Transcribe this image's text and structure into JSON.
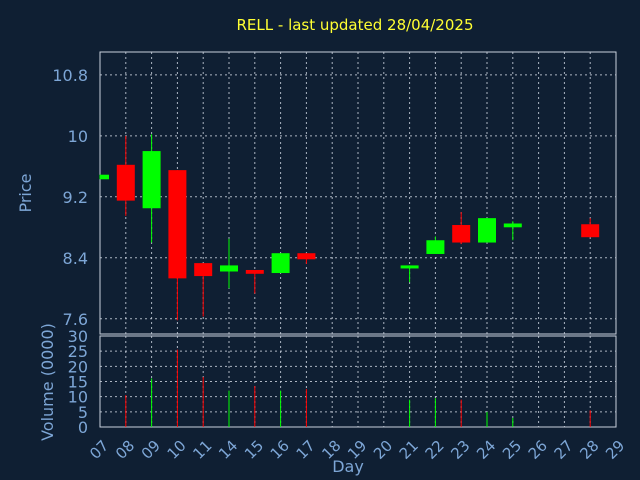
{
  "chart_data": {
    "type": "candlestick",
    "title": "RELL - last updated 28/04/2025",
    "xlabel": "Day",
    "price_ylabel": "Price",
    "volume_ylabel": "Volume (0000)",
    "x_tick_labels": [
      "07",
      "08",
      "09",
      "10",
      "11",
      "14",
      "15",
      "16",
      "17",
      "18",
      "19",
      "20",
      "21",
      "22",
      "23",
      "24",
      "25",
      "26",
      "27",
      "28",
      "29"
    ],
    "price_ticks": [
      "7.6",
      "8.4",
      "9.2",
      "10",
      "10.8"
    ],
    "price_ylim": [
      7.4,
      11.1
    ],
    "volume_ticks": [
      "0",
      "5",
      "10",
      "15",
      "20",
      "25",
      "30"
    ],
    "volume_ylim": [
      0,
      30
    ],
    "colors": {
      "up": "#00ff00",
      "down": "#ff0000",
      "background": "#0f1f33",
      "title": "#ffff33",
      "axis_text": "#7da6d6"
    },
    "candles": [
      {
        "day": "07",
        "open": 9.43,
        "close": 9.49,
        "high": 9.49,
        "low": 9.43,
        "volume": 0
      },
      {
        "day": "08",
        "open": 9.62,
        "close": 9.15,
        "high": 10.0,
        "low": 8.95,
        "volume": 10.5
      },
      {
        "day": "09",
        "open": 9.05,
        "close": 9.8,
        "high": 10.02,
        "low": 8.6,
        "volume": 16.0
      },
      {
        "day": "10",
        "open": 9.55,
        "close": 8.13,
        "high": 9.55,
        "low": 7.58,
        "volume": 25.5
      },
      {
        "day": "11",
        "open": 8.33,
        "close": 8.16,
        "high": 8.33,
        "low": 7.63,
        "volume": 16.5
      },
      {
        "day": "14",
        "open": 8.22,
        "close": 8.3,
        "high": 8.65,
        "low": 8.0,
        "volume": 12.0
      },
      {
        "day": "15",
        "open": 8.24,
        "close": 8.19,
        "high": 8.24,
        "low": 7.93,
        "volume": 13.5
      },
      {
        "day": "16",
        "open": 8.2,
        "close": 8.46,
        "high": 8.46,
        "low": 8.2,
        "volume": 12.0
      },
      {
        "day": "17",
        "open": 8.46,
        "close": 8.38,
        "high": 8.46,
        "low": 8.32,
        "volume": 12.5
      },
      {
        "day": "21",
        "open": 8.26,
        "close": 8.3,
        "high": 8.3,
        "low": 8.08,
        "volume": 9.0
      },
      {
        "day": "22",
        "open": 8.45,
        "close": 8.63,
        "high": 8.68,
        "low": 8.45,
        "volume": 9.5
      },
      {
        "day": "23",
        "open": 8.83,
        "close": 8.6,
        "high": 9.0,
        "low": 8.58,
        "volume": 9.0
      },
      {
        "day": "24",
        "open": 8.6,
        "close": 8.92,
        "high": 8.92,
        "low": 8.6,
        "volume": 5.0
      },
      {
        "day": "25",
        "open": 8.8,
        "close": 8.85,
        "high": 8.88,
        "low": 8.63,
        "volume": 3.0
      },
      {
        "day": "28",
        "open": 8.84,
        "close": 8.67,
        "high": 8.92,
        "low": 8.67,
        "volume": 5.5
      }
    ]
  }
}
